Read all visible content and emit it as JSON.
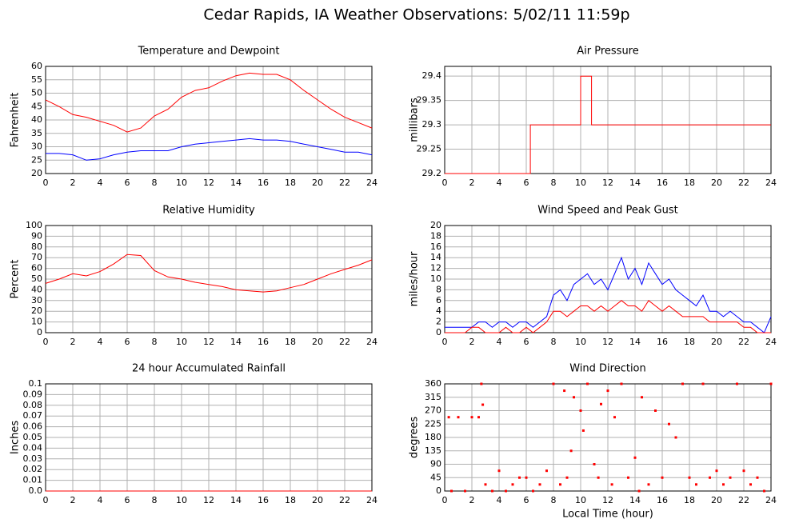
{
  "title": "Cedar Rapids, IA Weather Observations: 5/02/11 11:59p",
  "chart_data": [
    {
      "type": "line",
      "title": "Temperature and Dewpoint",
      "ylabel": "Fahrenheit",
      "x": [
        0,
        1,
        2,
        3,
        4,
        5,
        6,
        7,
        8,
        9,
        10,
        11,
        12,
        13,
        14,
        15,
        16,
        17,
        18,
        19,
        20,
        21,
        22,
        23,
        24
      ],
      "series": [
        {
          "color": "#ff0000",
          "values": [
            47.5,
            45,
            42,
            41,
            39.5,
            38,
            35.5,
            37,
            41.5,
            44,
            48.5,
            51,
            52,
            54.5,
            56.5,
            57.5,
            57,
            57,
            55,
            51,
            47.5,
            44,
            41,
            39,
            37
          ]
        },
        {
          "color": "#0000ff",
          "values": [
            27.5,
            27.5,
            27,
            25,
            25.5,
            27,
            28,
            28.5,
            28.5,
            28.5,
            30,
            31,
            31.5,
            32,
            32.5,
            33,
            32.5,
            32.5,
            32,
            31,
            30,
            29,
            28,
            28,
            27
          ]
        }
      ],
      "xlim": [
        0,
        24
      ],
      "xticks": [
        0,
        2,
        4,
        6,
        8,
        10,
        12,
        14,
        16,
        18,
        20,
        22,
        24
      ],
      "ylim": [
        20,
        60
      ],
      "yticks": [
        20,
        25,
        30,
        35,
        40,
        45,
        50,
        55,
        60
      ],
      "grid": true
    },
    {
      "type": "line",
      "title": "Air Pressure",
      "ylabel": "millibars",
      "x": [
        0,
        6.3,
        6.3,
        10,
        10,
        10.8,
        10.8,
        24
      ],
      "series": [
        {
          "color": "#ff0000",
          "values": [
            29.2,
            29.2,
            29.3,
            29.3,
            29.4,
            29.4,
            29.3,
            29.3
          ]
        }
      ],
      "xlim": [
        0,
        24
      ],
      "xticks": [
        0,
        2,
        4,
        6,
        8,
        10,
        12,
        14,
        16,
        18,
        20,
        22,
        24
      ],
      "ylim": [
        29.2,
        29.42
      ],
      "yticks": [
        29.2,
        29.25,
        29.3,
        29.35,
        29.4
      ],
      "grid": true
    },
    {
      "type": "line",
      "title": "Relative Humidity",
      "ylabel": "Percent",
      "x": [
        0,
        1,
        2,
        3,
        4,
        5,
        6,
        7,
        8,
        9,
        10,
        11,
        12,
        13,
        14,
        15,
        16,
        17,
        18,
        19,
        20,
        21,
        22,
        23,
        24
      ],
      "series": [
        {
          "color": "#ff0000",
          "values": [
            46,
            50,
            55,
            53,
            57,
            64,
            73,
            72,
            58,
            52,
            50,
            47,
            45,
            43,
            40,
            39,
            38,
            39,
            42,
            45,
            50,
            55,
            59,
            63,
            68
          ]
        }
      ],
      "xlim": [
        0,
        24
      ],
      "xticks": [
        0,
        2,
        4,
        6,
        8,
        10,
        12,
        14,
        16,
        18,
        20,
        22,
        24
      ],
      "ylim": [
        0,
        100
      ],
      "yticks": [
        0,
        10,
        20,
        30,
        40,
        50,
        60,
        70,
        80,
        90,
        100
      ],
      "grid": true
    },
    {
      "type": "line",
      "title": "Wind Speed and Peak Gust",
      "ylabel": "miles/hour",
      "x": [
        0,
        0.5,
        1,
        1.5,
        2,
        2.5,
        3,
        3.5,
        4,
        4.5,
        5,
        5.5,
        6,
        6.5,
        7,
        7.5,
        8,
        8.5,
        9,
        9.5,
        10,
        10.5,
        11,
        11.5,
        12,
        12.5,
        13,
        13.5,
        14,
        14.5,
        15,
        15.5,
        16,
        16.5,
        17,
        17.5,
        18,
        18.5,
        19,
        19.5,
        20,
        20.5,
        21,
        21.5,
        22,
        22.5,
        23,
        23.5,
        24
      ],
      "series": [
        {
          "color": "#0000ff",
          "values": [
            1,
            1,
            1,
            1,
            1,
            2,
            2,
            1,
            2,
            2,
            1,
            2,
            2,
            1,
            2,
            3,
            7,
            8,
            6,
            9,
            10,
            11,
            9,
            10,
            8,
            11,
            14,
            10,
            12,
            9,
            13,
            11,
            9,
            10,
            8,
            7,
            6,
            5,
            7,
            4,
            4,
            3,
            4,
            3,
            2,
            2,
            1,
            0,
            3
          ]
        },
        {
          "color": "#ff0000",
          "values": [
            0,
            0,
            0,
            0,
            1,
            1,
            0,
            0,
            0,
            1,
            0,
            0,
            1,
            0,
            1,
            2,
            4,
            4,
            3,
            4,
            5,
            5,
            4,
            5,
            4,
            5,
            6,
            5,
            5,
            4,
            6,
            5,
            4,
            5,
            4,
            3,
            3,
            3,
            3,
            2,
            2,
            2,
            2,
            2,
            1,
            1,
            0,
            0,
            0
          ]
        }
      ],
      "xlim": [
        0,
        24
      ],
      "xticks": [
        0,
        2,
        4,
        6,
        8,
        10,
        12,
        14,
        16,
        18,
        20,
        22,
        24
      ],
      "ylim": [
        0,
        20
      ],
      "yticks": [
        0,
        2,
        4,
        6,
        8,
        10,
        12,
        14,
        16,
        18,
        20
      ],
      "grid": true
    },
    {
      "type": "line",
      "title": "24 hour Accumulated Rainfall",
      "ylabel": "Inches",
      "x": [
        0,
        24
      ],
      "series": [
        {
          "color": "#ff0000",
          "values": [
            0,
            0
          ]
        }
      ],
      "xlim": [
        0,
        24
      ],
      "xticks": [
        0,
        2,
        4,
        6,
        8,
        10,
        12,
        14,
        16,
        18,
        20,
        22,
        24
      ],
      "ylim": [
        0,
        0.1
      ],
      "yticks": [
        {
          "value": 0,
          "label": "0.0"
        },
        0.01,
        0.02,
        0.03,
        0.04,
        0.05,
        0.06,
        0.07,
        0.08,
        0.09,
        0.1
      ],
      "grid": true
    },
    {
      "type": "scatter",
      "title": "Wind Direction",
      "ylabel": "degrees",
      "xlabel": "Local Time (hour)",
      "x": [
        0.3,
        1,
        2,
        2.5,
        0.5,
        1.5,
        2.7,
        2.8,
        3,
        3.5,
        4,
        4.5,
        5,
        5.5,
        6,
        6.5,
        7,
        7.5,
        8,
        8.5,
        8.8,
        9,
        9.3,
        9.5,
        10,
        10.2,
        10.5,
        11,
        11.3,
        11.5,
        12,
        12.3,
        12.5,
        13,
        13.5,
        14,
        14.3,
        14.5,
        15,
        15.5,
        16,
        16.5,
        17,
        17.5,
        18,
        18.5,
        19,
        19.5,
        20,
        20.5,
        21,
        21.5,
        22,
        22.5,
        23,
        23.5,
        24
      ],
      "series": [
        {
          "color": "#ff0000",
          "values": [
            248,
            248,
            248,
            248,
            0,
            0,
            360,
            290,
            22,
            0,
            68,
            0,
            22,
            45,
            45,
            0,
            22,
            68,
            360,
            22,
            337,
            45,
            135,
            315,
            270,
            203,
            360,
            90,
            45,
            292,
            337,
            22,
            248,
            360,
            45,
            112,
            0,
            315,
            22,
            270,
            45,
            225,
            180,
            360,
            45,
            22,
            360,
            45,
            68,
            22,
            45,
            360,
            68,
            22,
            45,
            0,
            360
          ]
        }
      ],
      "xlim": [
        0,
        24
      ],
      "xticks": [
        0,
        2,
        4,
        6,
        8,
        10,
        12,
        14,
        16,
        18,
        20,
        22,
        24
      ],
      "ylim": [
        0,
        360
      ],
      "yticks": [
        0,
        45,
        90,
        135,
        180,
        225,
        270,
        315,
        360
      ],
      "grid": true
    }
  ]
}
